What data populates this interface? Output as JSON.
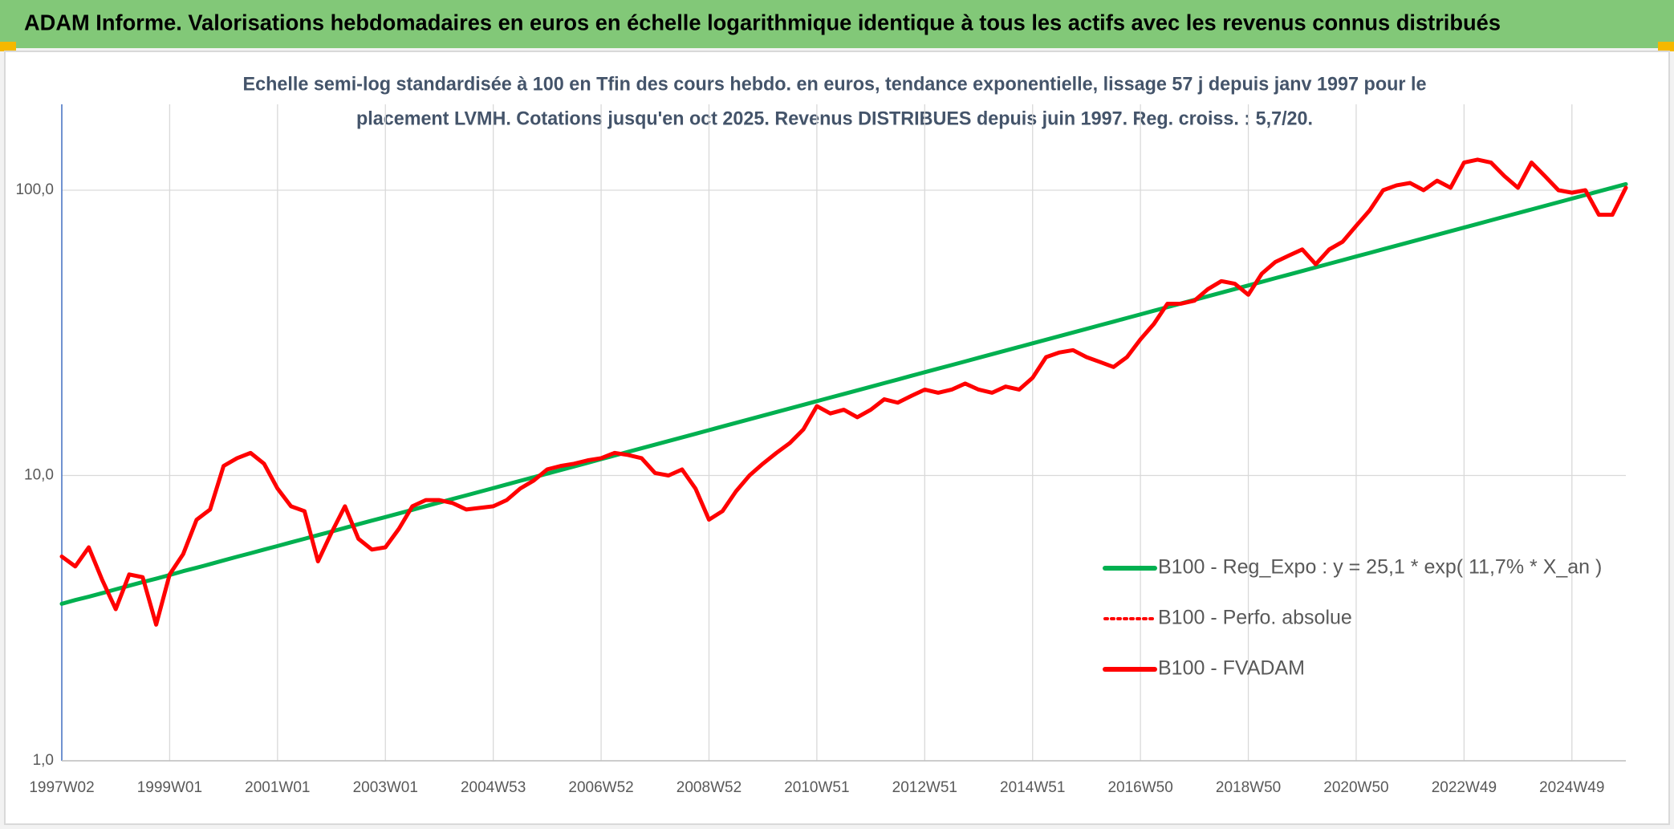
{
  "chart_data": {
    "type": "line",
    "title": "ADAM Informe. Valorisations hebdomadaires en euros en échelle logarithmique identique à tous les actifs avec les revenus connus distribués",
    "subtitle": [
      "Echelle semi-log standardisée à 100 en Tfin des cours hebdo. en euros, tendance exponentielle, lissage 57 j depuis janv 1997 pour le",
      "placement LVMH. Cotations jusqu'en oct 2025. Revenus DISTRIBUES depuis juin 1997. Reg. croiss. : 5,7/20."
    ],
    "log_scale": true,
    "grid": true,
    "legend_position": "right",
    "ylim": [
      1,
      200
    ],
    "yticks": [
      {
        "value": 1,
        "label": "1,0"
      },
      {
        "value": 10,
        "label": "10,0"
      },
      {
        "value": 100,
        "label": "100,0"
      }
    ],
    "categories": [
      "1997W02",
      null,
      null,
      null,
      null,
      null,
      null,
      null,
      "1999W01",
      null,
      null,
      null,
      null,
      null,
      null,
      null,
      "2001W01",
      null,
      null,
      null,
      null,
      null,
      null,
      null,
      "2003W01",
      null,
      null,
      null,
      null,
      null,
      null,
      null,
      "2004W53",
      null,
      null,
      null,
      null,
      null,
      null,
      null,
      "2006W52",
      null,
      null,
      null,
      null,
      null,
      null,
      null,
      "2008W52",
      null,
      null,
      null,
      null,
      null,
      null,
      null,
      "2010W51",
      null,
      null,
      null,
      null,
      null,
      null,
      null,
      "2012W51",
      null,
      null,
      null,
      null,
      null,
      null,
      null,
      "2014W51",
      null,
      null,
      null,
      null,
      null,
      null,
      null,
      "2016W50",
      null,
      null,
      null,
      null,
      null,
      null,
      null,
      "2018W50",
      null,
      null,
      null,
      null,
      null,
      null,
      null,
      "2020W50",
      null,
      null,
      null,
      null,
      null,
      null,
      null,
      "2022W49",
      null,
      null,
      null,
      null,
      null,
      null,
      null,
      "2024W49",
      null,
      null,
      null,
      null
    ],
    "series": [
      {
        "name": "B100 - Reg_Expo : y = 25,1 * exp( 11,7% *  X_an )",
        "color": "#00b050",
        "style": "solid",
        "values": [
          3.55,
          3.66,
          3.76,
          3.87,
          3.99,
          4.11,
          4.23,
          4.35,
          4.48,
          4.62,
          4.75,
          4.89,
          5.04,
          5.19,
          5.34,
          5.5,
          5.66,
          5.83,
          6.0,
          6.18,
          6.36,
          6.55,
          6.75,
          6.95,
          7.15,
          7.36,
          7.58,
          7.81,
          8.04,
          8.28,
          8.52,
          8.77,
          9.03,
          9.3,
          9.58,
          9.86,
          10.15,
          10.45,
          10.76,
          11.08,
          11.41,
          11.75,
          12.1,
          12.46,
          12.83,
          13.21,
          13.6,
          14.0,
          14.42,
          14.85,
          15.29,
          15.74,
          16.21,
          16.69,
          17.18,
          17.69,
          18.22,
          18.76,
          19.31,
          19.88,
          20.47,
          21.08,
          21.7,
          22.35,
          23.01,
          23.69,
          24.39,
          25.11,
          25.86,
          26.62,
          27.41,
          28.22,
          29.06,
          29.92,
          30.81,
          31.72,
          32.66,
          33.63,
          34.62,
          35.65,
          36.71,
          37.8,
          38.92,
          40.07,
          41.26,
          42.48,
          43.74,
          45.03,
          46.37,
          47.74,
          49.16,
          50.61,
          52.11,
          53.66,
          55.25,
          56.88,
          58.57,
          60.3,
          62.09,
          63.93,
          65.82,
          67.77,
          69.78,
          71.85,
          73.98,
          76.17,
          78.43,
          80.75,
          83.14,
          85.61,
          88.14,
          90.75,
          93.44,
          96.21,
          99.06,
          101.99,
          105.01
        ]
      },
      {
        "name": "B100 - Perfo. absolue",
        "color": "#ff0000",
        "style": "dotted",
        "values": [
          5.2,
          4.8,
          5.6,
          4.3,
          3.4,
          4.5,
          4.4,
          3.0,
          4.5,
          5.3,
          7.0,
          7.6,
          10.8,
          11.5,
          12.0,
          11.0,
          9.0,
          7.8,
          7.5,
          5.0,
          6.3,
          7.8,
          6.0,
          5.5,
          5.6,
          6.5,
          7.8,
          8.2,
          8.2,
          8.0,
          7.6,
          7.7,
          7.8,
          8.2,
          9.0,
          9.6,
          10.5,
          10.8,
          11.0,
          11.3,
          11.5,
          12.0,
          11.8,
          11.5,
          10.2,
          10.0,
          10.5,
          9.0,
          7.0,
          7.5,
          8.8,
          10.0,
          11.0,
          12.0,
          13.0,
          14.5,
          17.5,
          16.5,
          17.0,
          16.0,
          17.0,
          18.5,
          18.0,
          19.0,
          20.0,
          19.5,
          20.0,
          21.0,
          20.0,
          19.5,
          20.5,
          20.0,
          22.0,
          26.0,
          27.0,
          27.5,
          26.0,
          25.0,
          24.0,
          26.0,
          30.0,
          34.0,
          40.0,
          40.0,
          41.0,
          45.0,
          48.0,
          47.0,
          43.0,
          51.0,
          56.0,
          59.0,
          62.0,
          55.0,
          62.0,
          66.0,
          75.0,
          85.0,
          100.0,
          104.0,
          106.0,
          100.0,
          108.0,
          102.0,
          125.0,
          128.0,
          125.0,
          112.0,
          102.0,
          125.0,
          112.0,
          100.0,
          98.0,
          100.0,
          82.0,
          82.0,
          102.0
        ]
      },
      {
        "name": "B100 - FVADAM",
        "color": "#ff0000",
        "style": "solid",
        "values": [
          5.2,
          4.8,
          5.6,
          4.3,
          3.4,
          4.5,
          4.4,
          3.0,
          4.5,
          5.3,
          7.0,
          7.6,
          10.8,
          11.5,
          12.0,
          11.0,
          9.0,
          7.8,
          7.5,
          5.0,
          6.3,
          7.8,
          6.0,
          5.5,
          5.6,
          6.5,
          7.8,
          8.2,
          8.2,
          8.0,
          7.6,
          7.7,
          7.8,
          8.2,
          9.0,
          9.6,
          10.5,
          10.8,
          11.0,
          11.3,
          11.5,
          12.0,
          11.8,
          11.5,
          10.2,
          10.0,
          10.5,
          9.0,
          7.0,
          7.5,
          8.8,
          10.0,
          11.0,
          12.0,
          13.0,
          14.5,
          17.5,
          16.5,
          17.0,
          16.0,
          17.0,
          18.5,
          18.0,
          19.0,
          20.0,
          19.5,
          20.0,
          21.0,
          20.0,
          19.5,
          20.5,
          20.0,
          22.0,
          26.0,
          27.0,
          27.5,
          26.0,
          25.0,
          24.0,
          26.0,
          30.0,
          34.0,
          40.0,
          40.0,
          41.0,
          45.0,
          48.0,
          47.0,
          43.0,
          51.0,
          56.0,
          59.0,
          62.0,
          55.0,
          62.0,
          66.0,
          75.0,
          85.0,
          100.0,
          104.0,
          106.0,
          100.0,
          108.0,
          102.0,
          125.0,
          128.0,
          125.0,
          112.0,
          102.0,
          125.0,
          112.0,
          100.0,
          98.0,
          100.0,
          82.0,
          82.0,
          102.0
        ]
      }
    ]
  }
}
